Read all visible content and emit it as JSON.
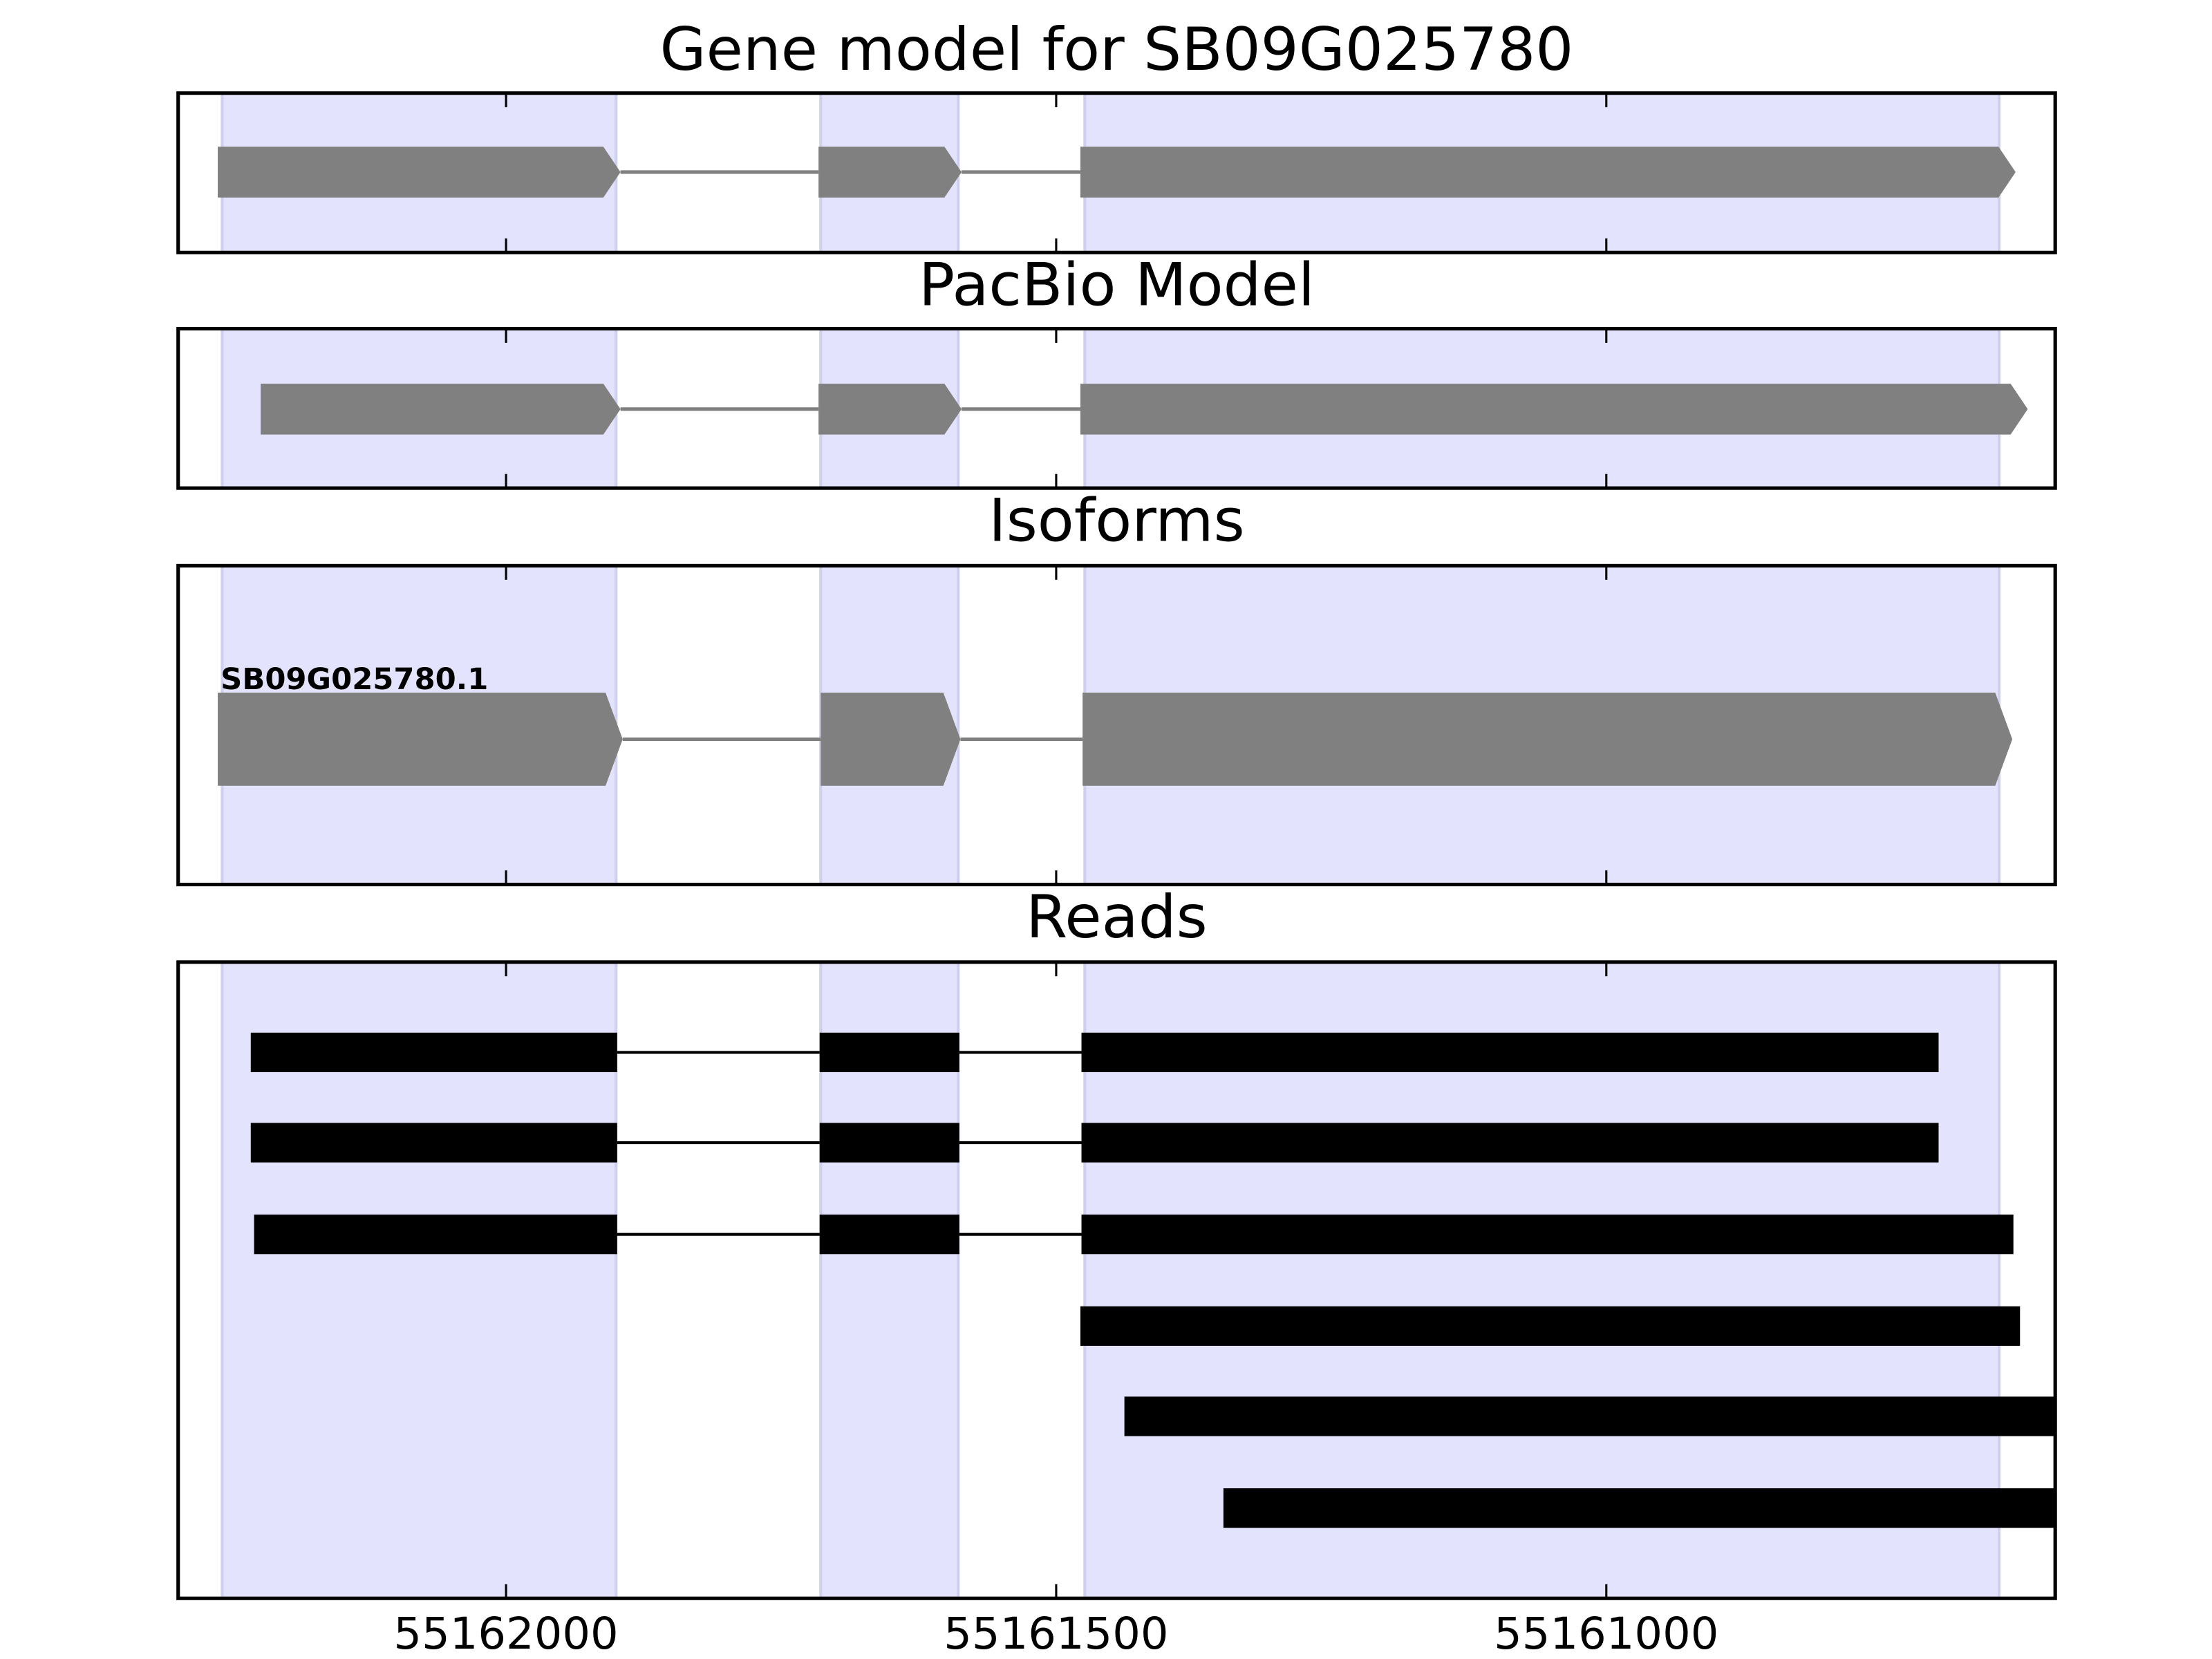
{
  "chart_data": [
    {
      "type": "gene-track",
      "title": "Gene model for SB09G025780",
      "xlim": [
        55162298,
        55160592
      ],
      "xticks": [
        55162000,
        55161500,
        55161000
      ],
      "tick_labels": false,
      "arrow": true,
      "color": "#808080",
      "highlights": [
        [
          55162258,
          55161900
        ],
        [
          55161714,
          55161589
        ],
        [
          55161474,
          55160643
        ]
      ],
      "features": [
        {
          "exons": [
            [
              55162262,
              55161896
            ],
            [
              55161716,
              55161586
            ],
            [
              55161478,
              55160628
            ]
          ]
        }
      ]
    },
    {
      "type": "gene-track",
      "title": "PacBio Model",
      "xlim": [
        55162298,
        55160592
      ],
      "xticks": [
        55162000,
        55161500,
        55161000
      ],
      "tick_labels": false,
      "arrow": true,
      "color": "#808080",
      "highlights": [
        [
          55162258,
          55161900
        ],
        [
          55161714,
          55161589
        ],
        [
          55161474,
          55160643
        ]
      ],
      "features": [
        {
          "exons": [
            [
              55162223,
              55161896
            ],
            [
              55161716,
              55161586
            ],
            [
              55161478,
              55160617
            ]
          ]
        }
      ]
    },
    {
      "type": "gene-track",
      "title": "Isoforms",
      "xlim": [
        55162298,
        55160592
      ],
      "xticks": [
        55162000,
        55161500,
        55161000
      ],
      "tick_labels": false,
      "arrow": true,
      "color": "#808080",
      "highlights": [
        [
          55162258,
          55161900
        ],
        [
          55161714,
          55161589
        ],
        [
          55161474,
          55160643
        ]
      ],
      "features": [
        {
          "label": "SB09G025780.1",
          "exons": [
            [
              55162262,
              55161894
            ],
            [
              55161714,
              55161587
            ],
            [
              55161476,
              55160631
            ]
          ]
        }
      ]
    },
    {
      "type": "gene-track",
      "title": "Reads",
      "xlim": [
        55162298,
        55160592
      ],
      "xticks": [
        55162000,
        55161500,
        55161000
      ],
      "tick_labels": true,
      "arrow": false,
      "color": "#000000",
      "highlights": [
        [
          55162258,
          55161900
        ],
        [
          55161714,
          55161589
        ],
        [
          55161474,
          55160643
        ]
      ],
      "features": [
        {
          "exons": [
            [
              55162232,
              55161899
            ],
            [
              55161715,
              55161588
            ],
            [
              55161477,
              55160698
            ]
          ]
        },
        {
          "exons": [
            [
              55162232,
              55161899
            ],
            [
              55161715,
              55161588
            ],
            [
              55161477,
              55160698
            ]
          ]
        },
        {
          "exons": [
            [
              55162229,
              55161899
            ],
            [
              55161715,
              55161588
            ],
            [
              55161477,
              55160630
            ]
          ]
        },
        {
          "exons": [
            [
              55161478,
              55160624
            ]
          ]
        },
        {
          "exons": [
            [
              55161438,
              55160550
            ]
          ]
        },
        {
          "exons": [
            [
              55161348,
              55160550
            ]
          ]
        }
      ]
    }
  ]
}
